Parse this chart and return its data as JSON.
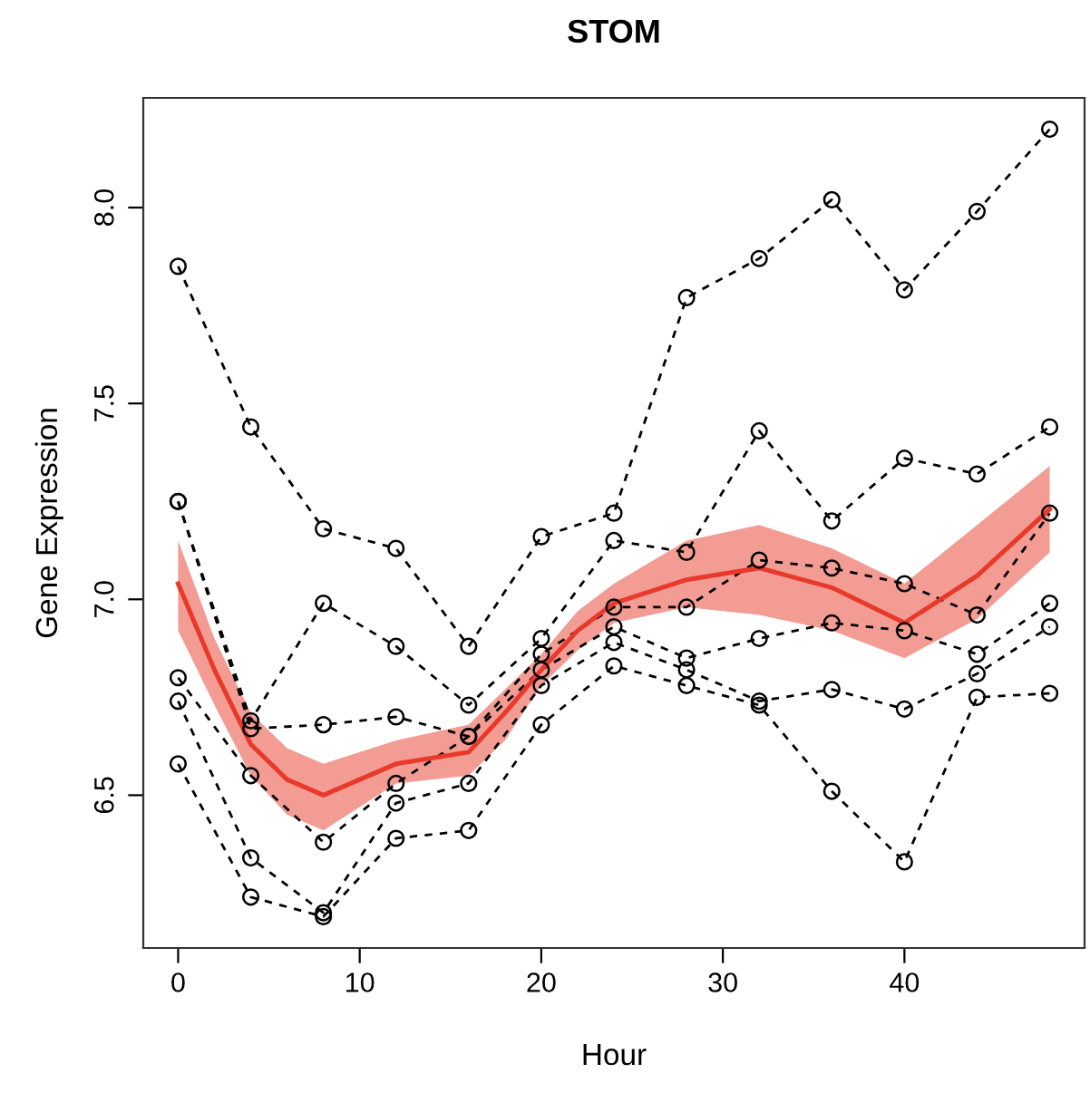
{
  "chart_data": {
    "type": "line",
    "title": "STOM",
    "xlabel": "Hour",
    "ylabel": "Gene Expression",
    "x": [
      0,
      4,
      8,
      12,
      16,
      20,
      24,
      28,
      32,
      36,
      40,
      44,
      48
    ],
    "xlim": [
      -1.92,
      49.92
    ],
    "xticks": [
      0,
      10,
      20,
      30,
      40
    ],
    "ylim": [
      6.11,
      8.28
    ],
    "yticks": [
      6.5,
      {
        "value": 7,
        "label": "7.0"
      },
      7.5,
      {
        "value": 8,
        "label": "8.0"
      }
    ],
    "grid": false,
    "marker": "circle",
    "line_style": "dashed",
    "series": [
      {
        "color": "#000000",
        "values": [
          7.85,
          7.44,
          7.18,
          7.13,
          6.88,
          7.16,
          7.22,
          7.77,
          7.87,
          8.02,
          7.79,
          7.99,
          8.2
        ]
      },
      {
        "color": "#000000",
        "values": [
          7.25,
          6.69,
          6.99,
          6.88,
          6.73,
          6.9,
          7.15,
          7.12,
          7.43,
          7.2,
          7.36,
          7.32,
          7.44
        ]
      },
      {
        "color": "#000000",
        "values": [
          7.25,
          6.67,
          6.68,
          6.7,
          6.65,
          6.86,
          6.98,
          6.98,
          7.1,
          7.08,
          7.04,
          6.96,
          7.22
        ]
      },
      {
        "color": "#000000",
        "values": [
          6.8,
          6.55,
          6.38,
          6.53,
          6.65,
          6.82,
          6.93,
          6.85,
          6.9,
          6.94,
          6.92,
          6.86,
          6.99
        ]
      },
      {
        "color": "#000000",
        "values": [
          6.74,
          6.34,
          6.2,
          6.48,
          6.53,
          6.78,
          6.89,
          6.82,
          6.74,
          6.77,
          6.72,
          6.81,
          6.93
        ]
      },
      {
        "color": "#000000",
        "values": [
          6.58,
          6.24,
          6.19,
          6.39,
          6.41,
          6.68,
          6.83,
          6.78,
          6.73,
          6.51,
          6.33,
          6.75,
          6.76
        ]
      },
      {
        "color": "#e8392a",
        "marker": "none",
        "line_style": "solid",
        "x": [
          0,
          2,
          4,
          6,
          8,
          12,
          16,
          18,
          20,
          22,
          24,
          28,
          32,
          36,
          40,
          44,
          48
        ],
        "values": [
          7.04,
          6.82,
          6.63,
          6.54,
          6.5,
          6.58,
          6.61,
          6.71,
          6.82,
          6.92,
          6.99,
          7.05,
          7.08,
          7.03,
          6.94,
          7.06,
          7.23
        ],
        "lower": [
          6.92,
          6.73,
          6.55,
          6.45,
          6.41,
          6.53,
          6.55,
          6.64,
          6.78,
          6.87,
          6.94,
          6.98,
          6.96,
          6.92,
          6.85,
          6.95,
          7.12
        ],
        "upper": [
          7.15,
          6.9,
          6.71,
          6.62,
          6.58,
          6.64,
          6.68,
          6.77,
          6.86,
          6.97,
          7.04,
          7.15,
          7.19,
          7.13,
          7.04,
          7.19,
          7.34
        ]
      }
    ]
  }
}
